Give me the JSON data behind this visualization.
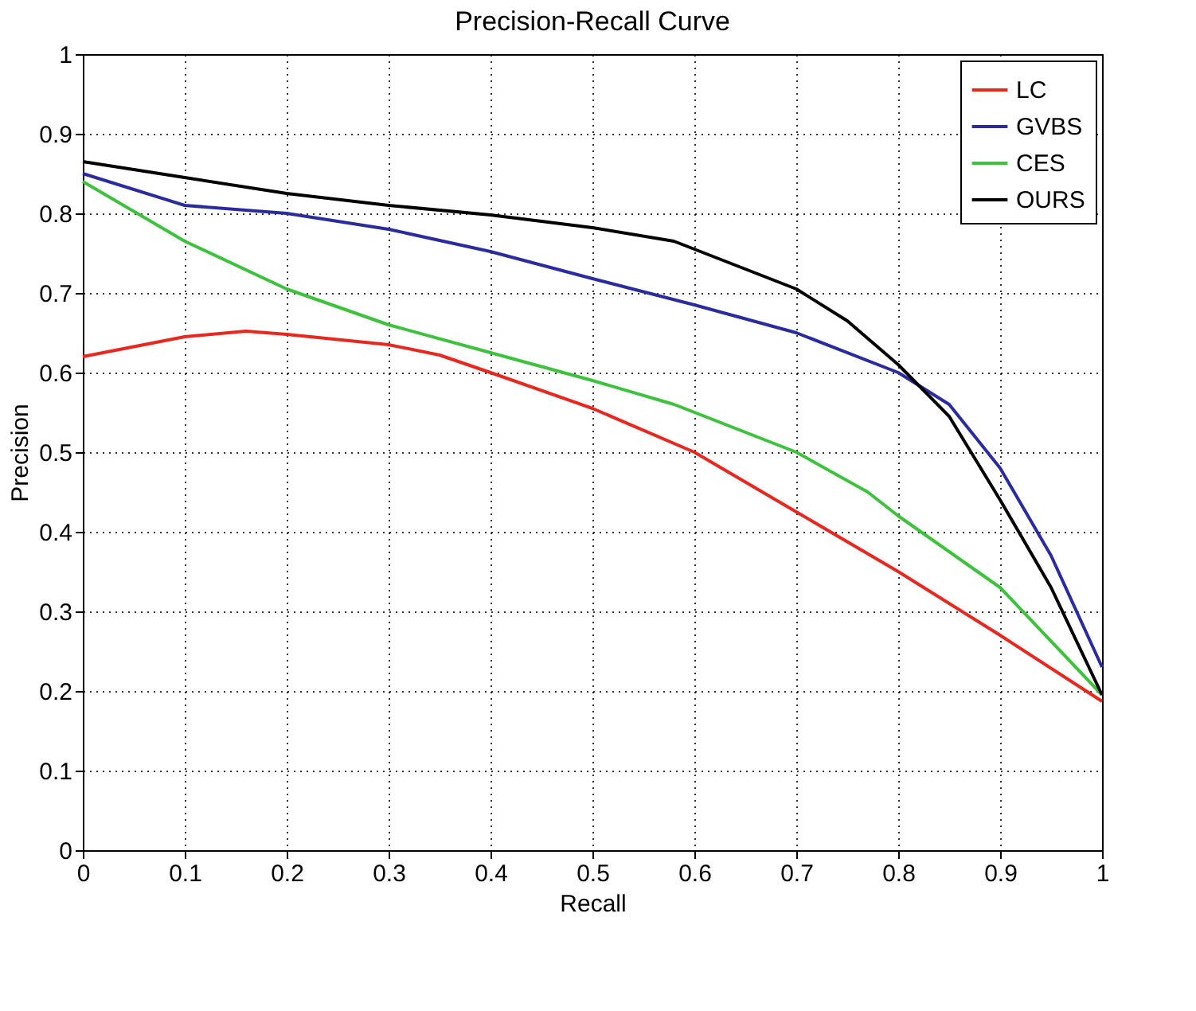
{
  "chart_data": {
    "type": "line",
    "title": "Precision-Recall Curve",
    "xlabel": "Recall",
    "ylabel": "Precision",
    "xlim": [
      0,
      1
    ],
    "ylim": [
      0,
      1
    ],
    "xticks": [
      0,
      0.1,
      0.2,
      0.3,
      0.4,
      0.5,
      0.6,
      0.7,
      0.8,
      0.9,
      1
    ],
    "yticks": [
      0,
      0.1,
      0.2,
      0.3,
      0.4,
      0.5,
      0.6,
      0.7,
      0.8,
      0.9,
      1
    ],
    "grid": true,
    "legend": "top right",
    "marker": "none",
    "line_style": "solid",
    "series": [
      {
        "name": "LC",
        "color": "#e8271f",
        "x": [
          0,
          0.1,
          0.16,
          0.2,
          0.3,
          0.35,
          0.4,
          0.5,
          0.6,
          0.7,
          0.8,
          0.9,
          1.0
        ],
        "values": [
          0.62,
          0.645,
          0.652,
          0.648,
          0.635,
          0.622,
          0.6,
          0.555,
          0.5,
          0.425,
          0.35,
          0.27,
          0.187
        ]
      },
      {
        "name": "GVBS",
        "color": "#2b2ba0",
        "x": [
          0,
          0.1,
          0.2,
          0.3,
          0.4,
          0.5,
          0.6,
          0.7,
          0.8,
          0.85,
          0.9,
          0.95,
          1.0
        ],
        "values": [
          0.85,
          0.81,
          0.8,
          0.78,
          0.752,
          0.718,
          0.685,
          0.65,
          0.6,
          0.56,
          0.48,
          0.37,
          0.23
        ]
      },
      {
        "name": "CES",
        "color": "#3ec23e",
        "x": [
          0,
          0.1,
          0.2,
          0.3,
          0.4,
          0.5,
          0.58,
          0.7,
          0.77,
          0.8,
          0.9,
          1.0
        ],
        "values": [
          0.84,
          0.765,
          0.705,
          0.66,
          0.625,
          0.59,
          0.56,
          0.5,
          0.45,
          0.42,
          0.33,
          0.195
        ]
      },
      {
        "name": "OURS",
        "color": "#000000",
        "x": [
          0,
          0.1,
          0.2,
          0.3,
          0.4,
          0.5,
          0.58,
          0.65,
          0.7,
          0.75,
          0.8,
          0.85,
          0.9,
          0.95,
          1.0
        ],
        "values": [
          0.865,
          0.845,
          0.825,
          0.81,
          0.798,
          0.782,
          0.765,
          0.73,
          0.705,
          0.665,
          0.61,
          0.545,
          0.44,
          0.33,
          0.195
        ]
      }
    ]
  }
}
